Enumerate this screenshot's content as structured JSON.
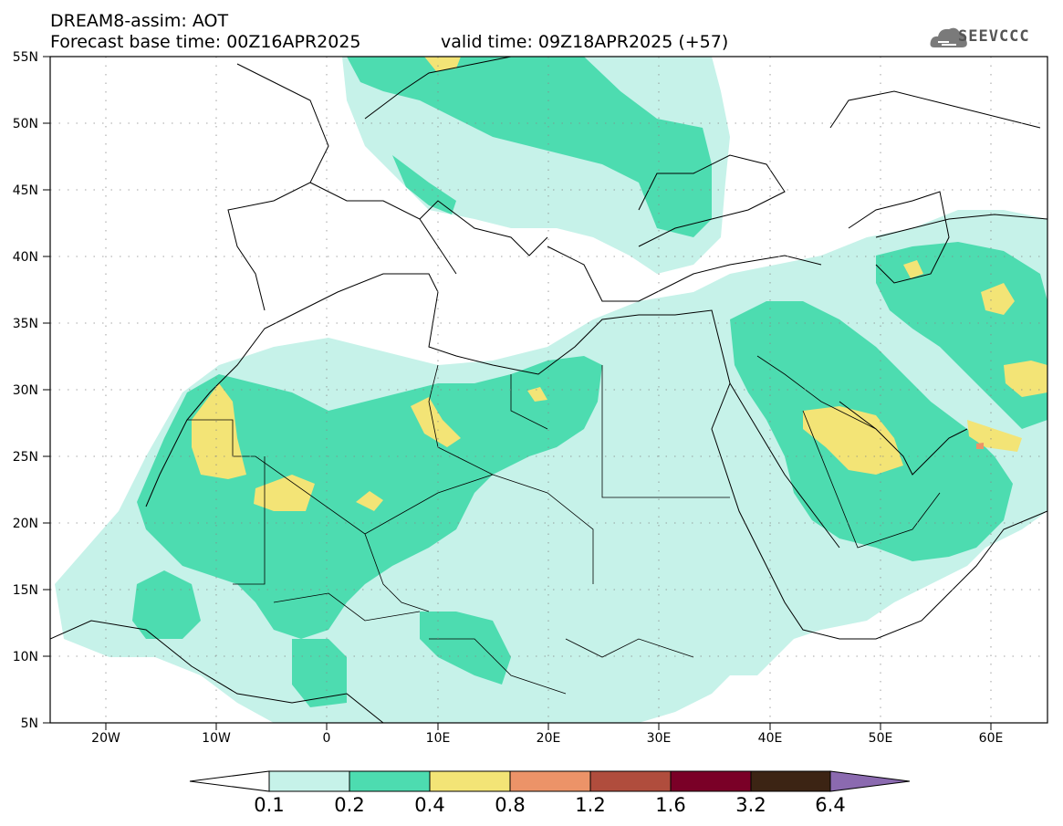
{
  "title": {
    "line1": "DREAM8-assim: AOT",
    "line2": "Forecast base time: 00Z16APR2025",
    "valid": "valid time: 09Z18APR2025 (+57)"
  },
  "logo": {
    "text": "SEEVCCC",
    "icon": "cloud-icon"
  },
  "axes": {
    "lat_labels": [
      "55N",
      "50N",
      "45N",
      "40N",
      "35N",
      "30N",
      "25N",
      "20N",
      "15N",
      "10N",
      "5N"
    ],
    "lon_labels": [
      "20W",
      "10W",
      "0",
      "10E",
      "20E",
      "30E",
      "40E",
      "50E",
      "60E"
    ],
    "lon_range": [
      -25,
      65
    ],
    "lat_range": [
      5,
      55
    ],
    "grid": "dotted"
  },
  "colorbar": {
    "levels": [
      "0.1",
      "0.2",
      "0.4",
      "0.8",
      "1.2",
      "1.6",
      "3.2",
      "6.4"
    ],
    "colors": [
      "#ffffff",
      "#c6f2e9",
      "#4ddcb0",
      "#f3e476",
      "#ec9368",
      "#b04d3d",
      "#7a0027",
      "#3c2414",
      "#8b6ab0"
    ]
  },
  "colors": {
    "lightcyan": "#c6f2e9",
    "green": "#4ddcb0",
    "yellow": "#f3e476",
    "orange": "#ec9368"
  }
}
